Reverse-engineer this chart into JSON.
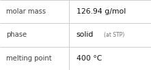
{
  "rows": [
    {
      "label": "molar mass",
      "value": "126.94 g/mol",
      "value2": null
    },
    {
      "label": "phase",
      "value": "solid",
      "value2": "(at STP)"
    },
    {
      "label": "melting point",
      "value": "400 °C",
      "value2": null
    }
  ],
  "col_split": 0.455,
  "background_color": "#ffffff",
  "border_color": "#c8c8c8",
  "label_fontsize": 7.2,
  "value_fontsize": 7.8,
  "value2_fontsize": 5.5,
  "label_color": "#404040",
  "value_color": "#111111",
  "value2_color": "#707070",
  "value_bold": false
}
